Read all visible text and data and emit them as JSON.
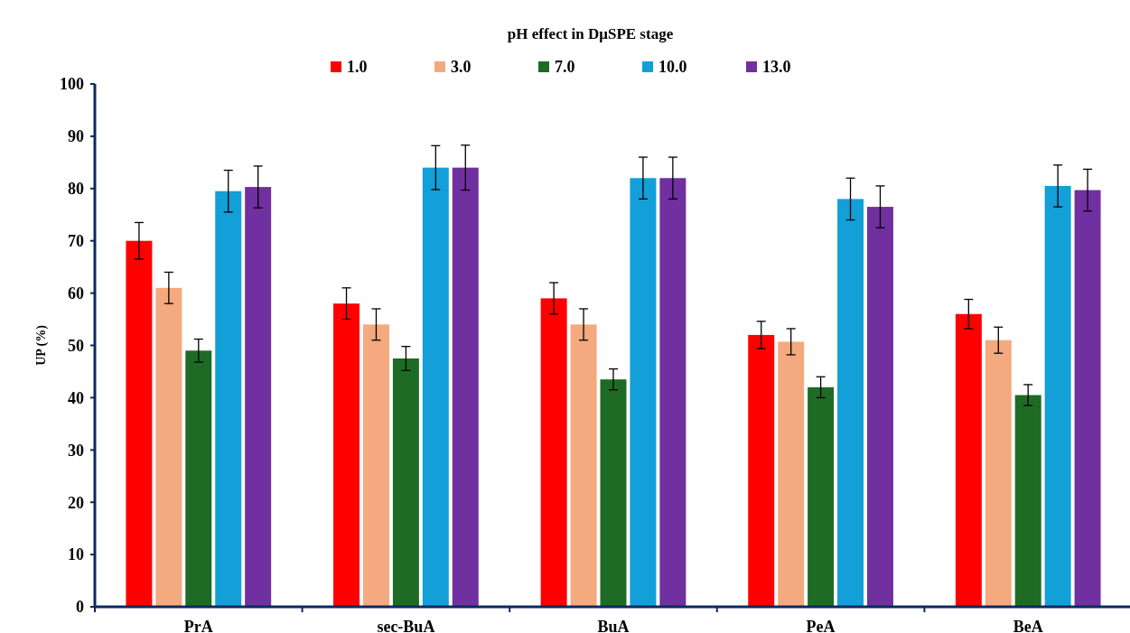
{
  "chart_data": {
    "type": "bar",
    "title": "pH effect in DμSPE stage",
    "ylabel": "UP (%)",
    "categories": [
      "PrA",
      "sec-BuA",
      "BuA",
      "PeA",
      "BeA"
    ],
    "series": [
      {
        "name": "1.0",
        "color": "#ff0000",
        "values": [
          70,
          58,
          59,
          52,
          56
        ],
        "errors": [
          3.5,
          3,
          3,
          2.6,
          2.8
        ]
      },
      {
        "name": "3.0",
        "color": "#f4a97f",
        "values": [
          61,
          54,
          54,
          50.7,
          51
        ],
        "errors": [
          3,
          3,
          3,
          2.5,
          2.5
        ]
      },
      {
        "name": "7.0",
        "color": "#1e6b25",
        "values": [
          49,
          47.5,
          43.5,
          42,
          40.5
        ],
        "errors": [
          2.2,
          2.3,
          2,
          2,
          2
        ]
      },
      {
        "name": "10.0",
        "color": "#139fd8",
        "values": [
          79.5,
          84,
          82,
          78,
          80.5
        ],
        "errors": [
          4,
          4.2,
          4,
          4,
          4
        ]
      },
      {
        "name": "13.0",
        "color": "#7030a0",
        "values": [
          80.3,
          84,
          82,
          76.5,
          79.7
        ],
        "errors": [
          4,
          4.3,
          4,
          4,
          4
        ]
      }
    ],
    "ylim": [
      0,
      100
    ],
    "yticks": [
      0,
      10,
      20,
      30,
      40,
      50,
      60,
      70,
      80,
      90,
      100
    ],
    "legend": "top"
  }
}
